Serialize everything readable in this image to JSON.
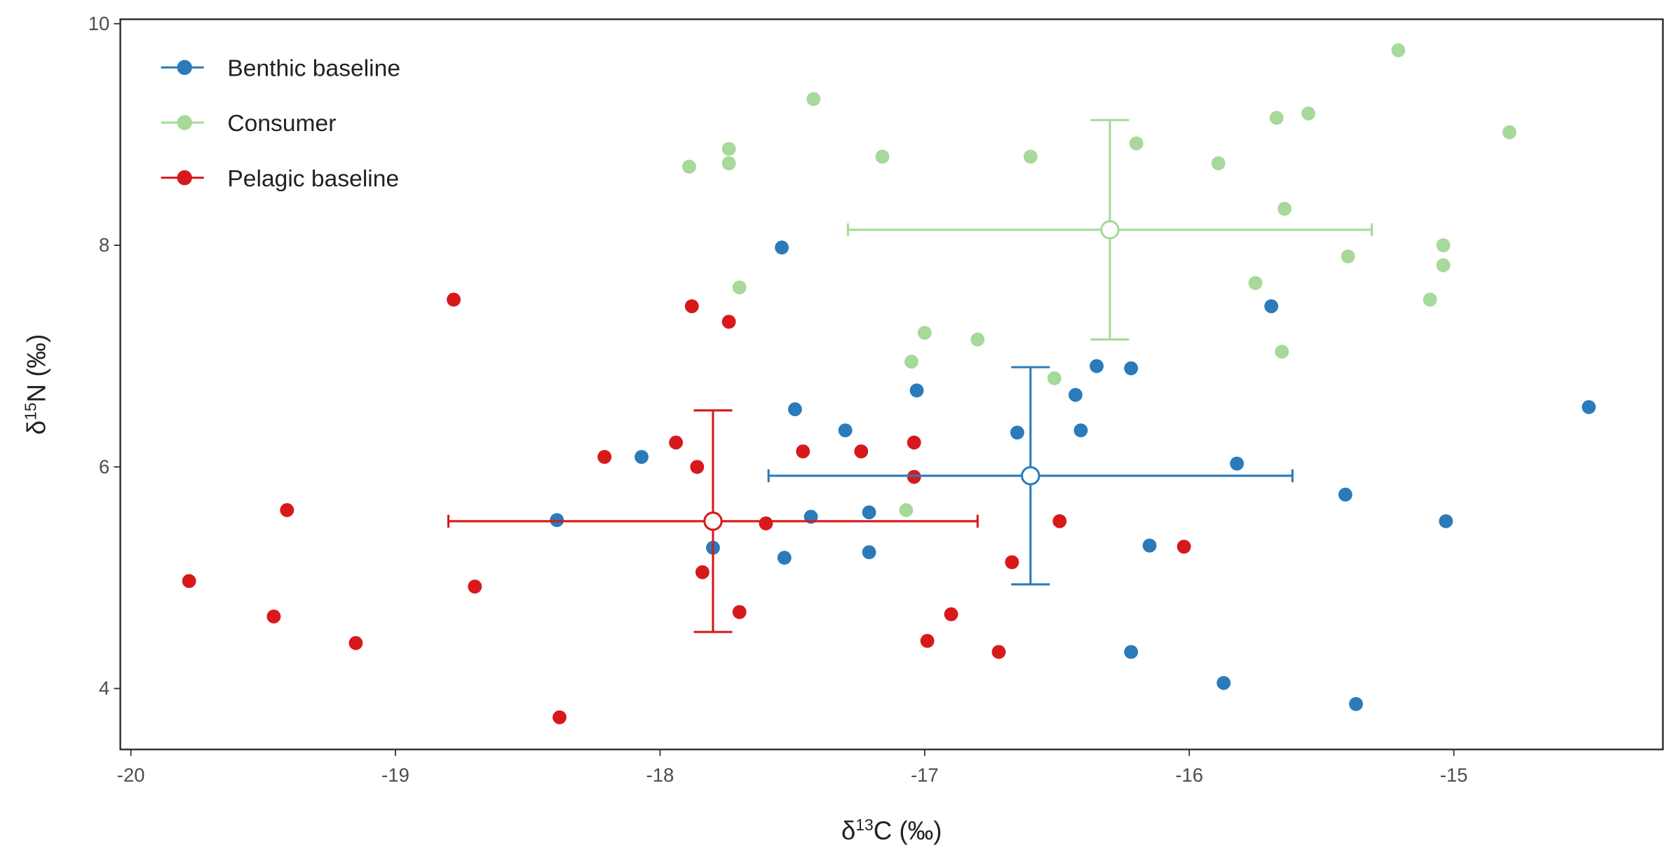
{
  "chart_data": {
    "type": "scatter",
    "x_label": {
      "prefix": "δ",
      "sup": "13",
      "suffix": "C (‰)"
    },
    "y_label": {
      "prefix": "δ",
      "sup": "15",
      "suffix": "N (‰)"
    },
    "xlim": [
      -20.04,
      -14.21
    ],
    "ylim": [
      3.45,
      10.04
    ],
    "xticks": [
      -20,
      -19,
      -18,
      -17,
      -16,
      -15
    ],
    "yticks": [
      4,
      6,
      8,
      10
    ],
    "grid": false,
    "legend": "top-left",
    "series": [
      {
        "name": "Benthic baseline",
        "color": "#2b7bba",
        "x": [
          -18.39,
          -18.07,
          -17.8,
          -17.54,
          -17.53,
          -17.49,
          -17.43,
          -17.3,
          -17.21,
          -17.21,
          -17.03,
          -16.65,
          -16.43,
          -16.41,
          -16.35,
          -16.22,
          -16.22,
          -16.15,
          -15.87,
          -15.82,
          -15.69,
          -15.41,
          -15.37,
          -15.03,
          -14.49
        ],
        "values": [
          5.52,
          6.09,
          5.27,
          7.98,
          5.18,
          6.52,
          5.55,
          6.33,
          5.59,
          5.23,
          6.69,
          6.31,
          6.65,
          6.33,
          6.91,
          6.89,
          4.33,
          5.29,
          4.05,
          6.03,
          7.45,
          5.75,
          3.86,
          5.51,
          6.54
        ],
        "mean": {
          "x": -16.6,
          "y": 5.92,
          "xerr": 0.99,
          "yerr": 0.98
        }
      },
      {
        "name": "Consumer",
        "color": "#a6d99a",
        "x": [
          -17.89,
          -17.74,
          -17.74,
          -17.7,
          -17.42,
          -17.16,
          -17.05,
          -17.0,
          -17.07,
          -16.8,
          -16.6,
          -16.51,
          -16.2,
          -15.89,
          -15.75,
          -15.67,
          -15.64,
          -15.65,
          -15.55,
          -15.4,
          -15.21,
          -15.09,
          -15.04,
          -15.04,
          -14.79
        ],
        "values": [
          8.71,
          8.87,
          8.74,
          7.62,
          9.32,
          8.8,
          6.95,
          7.21,
          5.61,
          7.15,
          8.8,
          6.8,
          8.92,
          8.74,
          7.66,
          9.15,
          8.33,
          7.04,
          9.19,
          7.9,
          9.76,
          7.51,
          8.0,
          7.82,
          9.02
        ],
        "mean": {
          "x": -16.3,
          "y": 8.14,
          "xerr": 0.99,
          "yerr": 0.99
        }
      },
      {
        "name": "Pelagic baseline",
        "color": "#d7191c",
        "x": [
          -19.78,
          -19.46,
          -19.41,
          -19.15,
          -18.78,
          -18.7,
          -18.38,
          -18.21,
          -17.94,
          -17.88,
          -17.86,
          -17.84,
          -17.74,
          -17.7,
          -17.6,
          -17.46,
          -17.24,
          -17.04,
          -17.04,
          -16.99,
          -16.9,
          -16.72,
          -16.67,
          -16.49,
          -16.02
        ],
        "values": [
          4.97,
          4.65,
          5.61,
          4.41,
          7.51,
          4.92,
          3.74,
          6.09,
          6.22,
          7.45,
          6.0,
          5.05,
          7.31,
          4.69,
          5.49,
          6.14,
          6.14,
          6.22,
          5.91,
          4.43,
          4.67,
          4.33,
          5.14,
          5.51,
          5.28
        ],
        "mean": {
          "x": -17.8,
          "y": 5.51,
          "xerr": 1.0,
          "yerr": 1.0
        }
      }
    ]
  }
}
